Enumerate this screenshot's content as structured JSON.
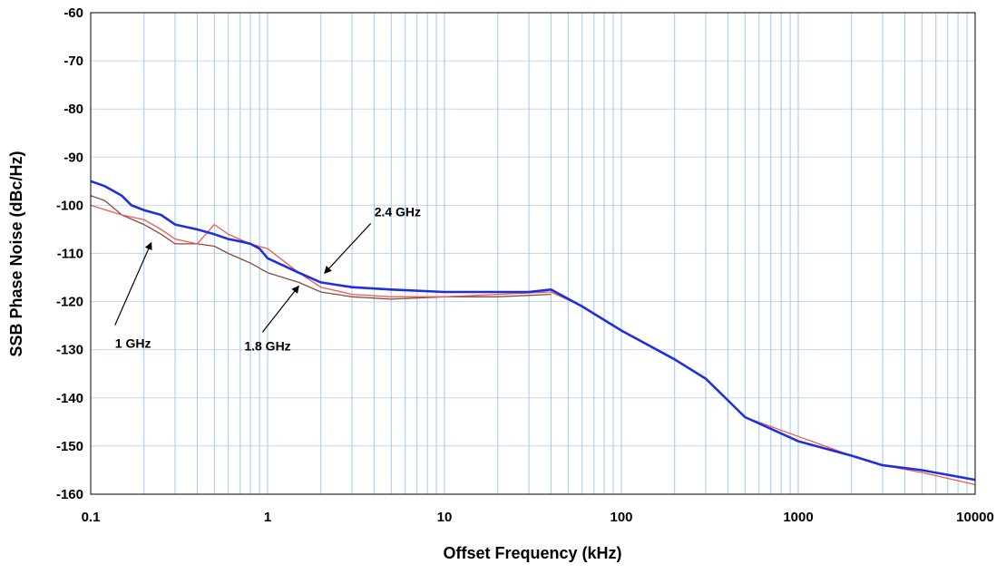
{
  "chart_data": {
    "type": "line",
    "title": "",
    "xlabel": "Offset Frequency (kHz)",
    "ylabel": "SSB Phase Noise (dBc/Hz)",
    "x_scale": "log",
    "xlim": [
      0.1,
      10000
    ],
    "ylim": [
      -160,
      -60
    ],
    "x_ticks": [
      "0.1",
      "1",
      "10",
      "100",
      "1000",
      "10000"
    ],
    "y_ticks": [
      "-60",
      "-70",
      "-80",
      "-90",
      "-100",
      "-110",
      "-120",
      "-130",
      "-140",
      "-150",
      "-160"
    ],
    "grid": {
      "vertical_minor": true,
      "horizontal": true
    },
    "legend": "none",
    "colors": {
      "series_2_4": "#1f2fe0",
      "series_1_8": "#ee5a4f",
      "series_1": "#8b4a3c",
      "grid_vertical": "#9cc9ee",
      "grid_horizontal": "#c8d4f0"
    },
    "series": [
      {
        "name": "2.4 GHz",
        "x": [
          0.1,
          0.12,
          0.15,
          0.17,
          0.2,
          0.25,
          0.3,
          0.4,
          0.5,
          0.6,
          0.7,
          0.8,
          0.9,
          1,
          1.5,
          2,
          3,
          5,
          10,
          20,
          30,
          40,
          60,
          100,
          200,
          300,
          500,
          1000,
          2000,
          3000,
          5000,
          10000
        ],
        "y": [
          -95,
          -96,
          -98,
          -100,
          -101,
          -102,
          -104,
          -105,
          -106,
          -107,
          -107.5,
          -108,
          -109,
          -111,
          -114,
          -116,
          -117,
          -117.5,
          -118,
          -118,
          -118,
          -117.5,
          -121,
          -126,
          -132,
          -136,
          -144,
          -149,
          -152,
          -154,
          -155,
          -157
        ]
      },
      {
        "name": "1.8 GHz",
        "x": [
          0.1,
          0.15,
          0.2,
          0.25,
          0.3,
          0.4,
          0.5,
          0.6,
          0.8,
          1,
          1.5,
          2,
          3,
          5,
          10,
          20,
          40,
          60,
          100,
          200,
          300,
          500,
          1000,
          2000,
          3000,
          5000,
          10000
        ],
        "y": [
          -100,
          -102,
          -103,
          -105,
          -107,
          -108,
          -104,
          -106,
          -108,
          -109,
          -114,
          -117,
          -118.5,
          -119,
          -119,
          -118.5,
          -118,
          -121,
          -126,
          -132,
          -136,
          -144,
          -148,
          -152,
          -154,
          -155.5,
          -158
        ]
      },
      {
        "name": "1 GHz",
        "x": [
          0.1,
          0.12,
          0.15,
          0.2,
          0.25,
          0.3,
          0.4,
          0.5,
          0.6,
          0.8,
          1,
          1.5,
          2,
          3,
          5,
          10,
          20,
          40
        ],
        "y": [
          -98,
          -99,
          -102,
          -104,
          -106,
          -108,
          -108,
          -108.5,
          -110,
          -112,
          -114,
          -116,
          -118,
          -119,
          -119.5,
          -119,
          -119,
          -118.5
        ]
      }
    ],
    "annotations": [
      {
        "text": "2.4 GHz",
        "x": 2,
        "y": -113
      },
      {
        "text": "1.8 GHz",
        "x": 1.5,
        "y": -116
      },
      {
        "text": "1 GHz",
        "x": 0.22,
        "y": -107
      }
    ]
  }
}
